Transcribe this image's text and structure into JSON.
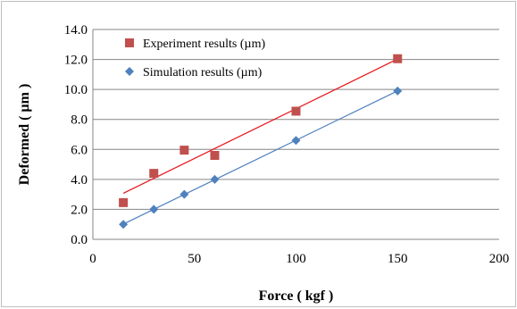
{
  "chart_data": {
    "type": "scatter",
    "xlabel": "Force ( kgf )",
    "ylabel": "Deformed ( µm )",
    "xlim": [
      0,
      200
    ],
    "ylim": [
      0,
      14
    ],
    "x_ticks": [
      "0",
      "50",
      "100",
      "150",
      "200"
    ],
    "y_ticks": [
      "0.0",
      "2.0",
      "4.0",
      "6.0",
      "8.0",
      "10.0",
      "12.0",
      "14.0"
    ],
    "grid": "horizontal",
    "legend_position": "top-left",
    "series": [
      {
        "name": "Experiment results (µm)",
        "marker": "square",
        "color": "#c0504d",
        "trendline_color": "#e8141b",
        "x": [
          15,
          30,
          45,
          60,
          100,
          150
        ],
        "y": [
          2.45,
          4.4,
          5.95,
          5.6,
          8.55,
          12.05
        ]
      },
      {
        "name": "Simulation results (µm)",
        "marker": "diamond",
        "color": "#4f81bd",
        "trendline_color": "#4f81bd",
        "x": [
          15,
          30,
          45,
          60,
          100,
          150
        ],
        "y": [
          1.0,
          2.0,
          3.0,
          4.0,
          6.6,
          9.9
        ]
      }
    ]
  }
}
